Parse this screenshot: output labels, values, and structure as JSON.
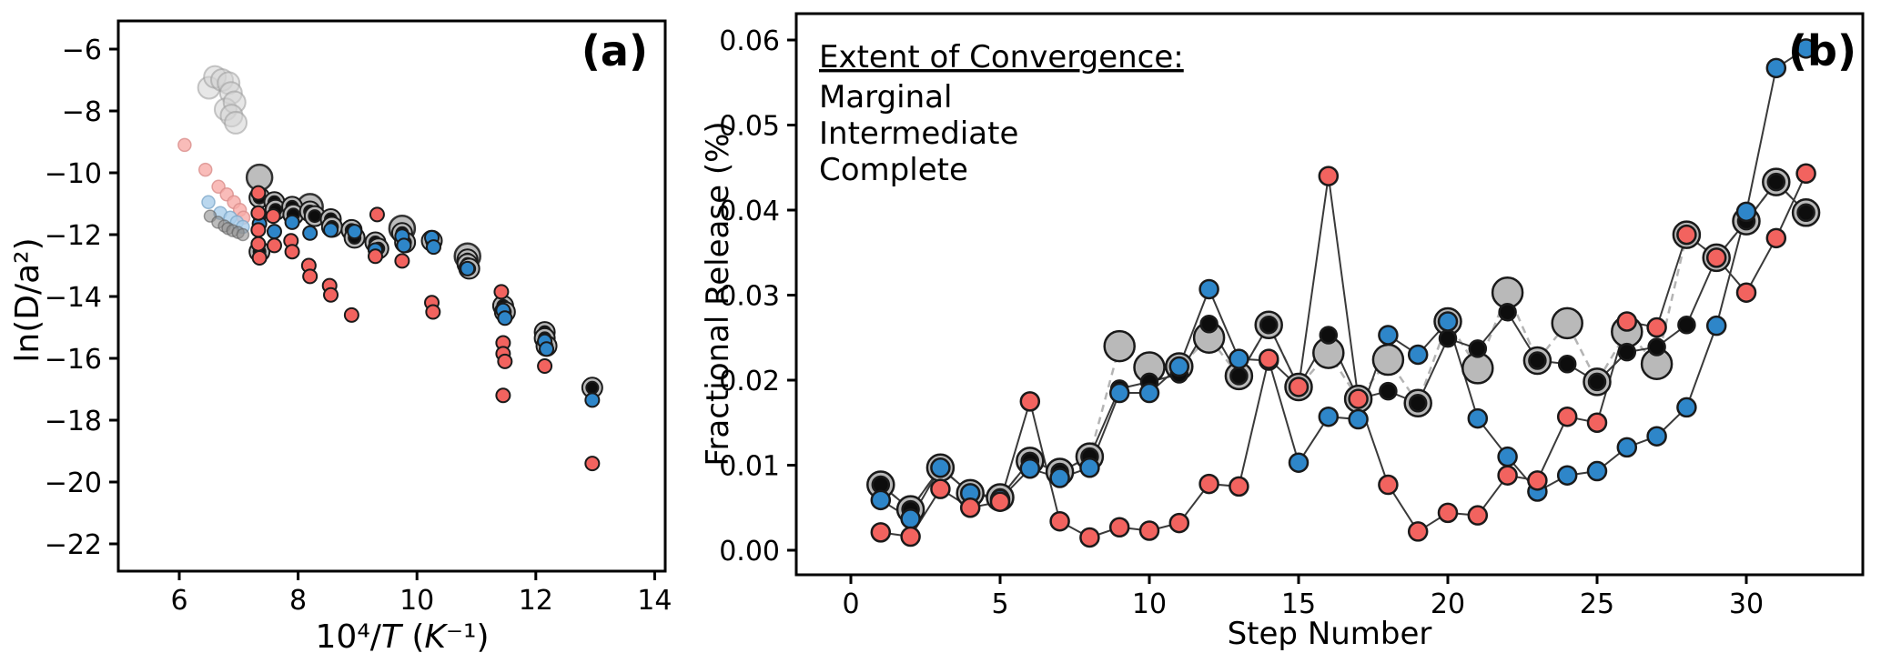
{
  "colors": {
    "marginal_red": "#f2635f",
    "intermediate_blue": "#2e86c9",
    "complete_black": "#0d0d0d",
    "halo_gray": "#b9b9b9",
    "big_gray": "#bdbdbd",
    "marker_edge": "#1a1a1a",
    "series_line": "#3a3a3a",
    "dashed_gray_line": "#b4b4b4",
    "faded_gray": "#d4d4d4",
    "faded_gray_edge": "#9a9a9a",
    "faded_red": "#f8aba7",
    "faded_red_edge": "#d98f8c",
    "faded_blue": "#a9cdea",
    "faded_blue_edge": "#7fa9c9",
    "faded_dark": "#8f8f8f",
    "faded_dark_edge": "#5f5f5f"
  },
  "chart_data": [
    {
      "type": "scatter",
      "panel_label": "(a)",
      "xlabel": "10⁴/T (K⁻¹)",
      "xlabel_parts": [
        {
          "text": "10",
          "italic": false
        },
        {
          "text": "⁴",
          "italic": false
        },
        {
          "text": "/",
          "italic": false
        },
        {
          "text": "T",
          "italic": true
        },
        {
          "text": " (",
          "italic": false
        },
        {
          "text": "K",
          "italic": true
        },
        {
          "text": "⁻¹",
          "italic": false
        },
        {
          "text": ")",
          "italic": false
        }
      ],
      "ylabel": "ln(D/a²)",
      "xlim": [
        5.0,
        14.25
      ],
      "ylim": [
        -23.0,
        -5.1
      ],
      "x_ticks": [
        6,
        8,
        10,
        12,
        14
      ],
      "y_ticks": [
        -6,
        -8,
        -10,
        -12,
        -14,
        -16,
        -18,
        -20,
        -22
      ],
      "grid": false,
      "series": [
        {
          "name": "faded-large-gray",
          "style": "faded_gray",
          "points": [
            [
              6.5,
              -7.25
            ],
            [
              6.6,
              -6.9
            ],
            [
              6.72,
              -7.0
            ],
            [
              6.83,
              -7.1
            ],
            [
              6.87,
              -7.42
            ],
            [
              6.78,
              -7.95
            ],
            [
              6.93,
              -7.72
            ],
            [
              6.88,
              -8.15
            ],
            [
              6.95,
              -8.38
            ]
          ]
        },
        {
          "name": "faded-marginal",
          "style": "faded_red",
          "points": [
            [
              6.09,
              -9.1
            ],
            [
              6.44,
              -9.9
            ],
            [
              6.66,
              -10.45
            ],
            [
              6.8,
              -10.7
            ],
            [
              6.92,
              -10.95
            ],
            [
              7.02,
              -11.2
            ],
            [
              7.08,
              -11.45
            ]
          ]
        },
        {
          "name": "faded-intermediate",
          "style": "faded_blue",
          "points": [
            [
              6.49,
              -10.95
            ],
            [
              6.69,
              -11.3
            ],
            [
              6.86,
              -11.45
            ],
            [
              6.97,
              -11.6
            ],
            [
              7.07,
              -11.75
            ]
          ]
        },
        {
          "name": "faded-complete",
          "style": "faded_dark",
          "points": [
            [
              6.52,
              -11.4
            ],
            [
              6.65,
              -11.6
            ],
            [
              6.76,
              -11.72
            ],
            [
              6.82,
              -11.8
            ],
            [
              6.9,
              -11.87
            ],
            [
              6.99,
              -11.93
            ],
            [
              7.07,
              -12.0
            ]
          ]
        },
        {
          "name": "large-gray-circles",
          "style": "big_gray",
          "points": [
            [
              7.35,
              -10.15
            ],
            [
              8.2,
              -11.1
            ],
            [
              9.75,
              -11.8
            ],
            [
              10.85,
              -12.7
            ]
          ]
        },
        {
          "name": "complete",
          "style": "complete",
          "points": [
            [
              7.35,
              -10.8
            ],
            [
              7.35,
              -12.55
            ],
            [
              7.6,
              -10.95
            ],
            [
              7.62,
              -11.2
            ],
            [
              7.9,
              -11.1
            ],
            [
              7.92,
              -11.35
            ],
            [
              8.2,
              -11.25
            ],
            [
              8.28,
              -11.4
            ],
            [
              8.55,
              -11.5
            ],
            [
              8.57,
              -11.75
            ],
            [
              8.9,
              -11.85
            ],
            [
              8.95,
              -12.1
            ],
            [
              9.3,
              -12.25
            ],
            [
              9.35,
              -12.45
            ],
            [
              9.75,
              -11.95
            ],
            [
              9.8,
              -12.25
            ],
            [
              10.25,
              -12.2
            ],
            [
              10.85,
              -12.8
            ],
            [
              10.85,
              -12.95
            ],
            [
              10.88,
              -13.1
            ],
            [
              11.45,
              -14.3
            ],
            [
              11.48,
              -14.5
            ],
            [
              12.15,
              -15.15
            ],
            [
              12.15,
              -15.35
            ],
            [
              12.18,
              -15.6
            ],
            [
              12.95,
              -16.95
            ]
          ]
        },
        {
          "name": "intermediate",
          "style": "blue",
          "points": [
            [
              7.35,
              -11.35
            ],
            [
              7.35,
              -11.65
            ],
            [
              7.6,
              -11.9
            ],
            [
              7.9,
              -11.6
            ],
            [
              8.2,
              -11.95
            ],
            [
              8.55,
              -11.85
            ],
            [
              8.95,
              -11.9
            ],
            [
              9.3,
              -12.5
            ],
            [
              9.75,
              -12.05
            ],
            [
              9.78,
              -12.35
            ],
            [
              10.25,
              -12.1
            ],
            [
              10.28,
              -12.4
            ],
            [
              10.85,
              -13.1
            ],
            [
              11.45,
              -14.45
            ],
            [
              11.48,
              -14.7
            ],
            [
              12.15,
              -15.45
            ],
            [
              12.18,
              -15.7
            ],
            [
              12.95,
              -17.35
            ]
          ]
        },
        {
          "name": "marginal",
          "style": "red",
          "points": [
            [
              7.33,
              -10.65
            ],
            [
              7.33,
              -11.3
            ],
            [
              7.33,
              -11.85
            ],
            [
              7.33,
              -12.3
            ],
            [
              7.35,
              -12.75
            ],
            [
              7.58,
              -11.4
            ],
            [
              7.6,
              -12.35
            ],
            [
              7.88,
              -12.2
            ],
            [
              7.9,
              -12.55
            ],
            [
              8.18,
              -13.0
            ],
            [
              8.2,
              -13.35
            ],
            [
              8.53,
              -13.65
            ],
            [
              8.55,
              -13.95
            ],
            [
              8.9,
              -14.6
            ],
            [
              9.33,
              -11.35
            ],
            [
              9.3,
              -12.7
            ],
            [
              9.75,
              -12.85
            ],
            [
              10.25,
              -14.2
            ],
            [
              10.27,
              -14.5
            ],
            [
              11.42,
              -13.85
            ],
            [
              11.45,
              -15.5
            ],
            [
              11.45,
              -15.85
            ],
            [
              11.48,
              -16.1
            ],
            [
              11.45,
              -17.2
            ],
            [
              12.15,
              -16.25
            ],
            [
              12.95,
              -19.4
            ]
          ]
        }
      ]
    },
    {
      "type": "line-scatter",
      "panel_label": "(b)",
      "xlabel": "Step Number",
      "ylabel": "Fractional Release (%)",
      "xlim": [
        0,
        33.6
      ],
      "ylim": [
        0.0,
        0.063
      ],
      "x_ticks": [
        0,
        5,
        10,
        15,
        20,
        25,
        30
      ],
      "y_ticks": [
        0.0,
        0.01,
        0.02,
        0.03,
        0.04,
        0.05,
        0.06
      ],
      "grid": false,
      "legend": {
        "title": "Extent of Convergence:",
        "items": [
          {
            "label": "Marginal",
            "color": "#f2635f"
          },
          {
            "label": "Intermediate",
            "color": "#2e86c9"
          },
          {
            "label": "Complete",
            "color": "#0d0d0d"
          }
        ]
      },
      "steps": [
        1,
        2,
        3,
        4,
        5,
        6,
        7,
        8,
        9,
        10,
        11,
        12,
        13,
        14,
        15,
        16,
        17,
        18,
        19,
        20,
        21,
        22,
        23,
        24,
        25,
        26,
        27,
        28,
        29,
        30,
        31,
        32
      ],
      "series": [
        {
          "name": "gray-halo",
          "values": [
            0.0077,
            0.0048,
            0.0097,
            0.0067,
            0.0062,
            0.0105,
            0.0092,
            0.011,
            0.024,
            0.0215,
            0.0216,
            0.025,
            0.0205,
            0.0265,
            0.0192,
            0.0232,
            0.0178,
            0.0224,
            0.0173,
            0.0269,
            0.0214,
            0.0303,
            0.0223,
            0.0267,
            0.0198,
            0.0257,
            0.0219,
            0.0371,
            0.0344,
            0.0387,
            0.0433,
            0.0397
          ],
          "big_steps": [
            9,
            10,
            12,
            16,
            18,
            21,
            22,
            24,
            26,
            27
          ]
        },
        {
          "name": "complete",
          "values": [
            0.0077,
            0.0048,
            0.0097,
            0.0067,
            0.0062,
            0.0105,
            0.0092,
            0.011,
            0.019,
            0.0198,
            0.0207,
            0.0266,
            0.0205,
            0.0265,
            0.0192,
            0.0253,
            0.0178,
            0.0187,
            0.0173,
            0.0249,
            0.0237,
            0.028,
            0.0223,
            0.0219,
            0.0198,
            0.0233,
            0.0239,
            0.0265,
            0.0344,
            0.0387,
            0.0433,
            0.0397
          ]
        },
        {
          "name": "intermediate",
          "values": [
            0.0059,
            0.0037,
            0.0097,
            0.0067,
            0.006,
            0.0096,
            0.0085,
            0.0097,
            0.0185,
            0.0185,
            0.0216,
            0.0307,
            0.0225,
            0.0223,
            0.0103,
            0.0157,
            0.0154,
            0.0253,
            0.023,
            0.0269,
            0.0155,
            0.011,
            0.0069,
            0.0088,
            0.0093,
            0.0121,
            0.0134,
            0.0168,
            0.0264,
            0.0398,
            0.0567,
            0.059
          ]
        },
        {
          "name": "marginal",
          "values": [
            0.0021,
            0.0016,
            0.0072,
            0.005,
            0.0057,
            0.0175,
            0.0034,
            0.0015,
            0.0027,
            0.0023,
            0.0032,
            0.0078,
            0.0075,
            0.0225,
            0.0192,
            0.044,
            0.0178,
            0.0077,
            0.0022,
            0.0044,
            0.0041,
            0.0088,
            0.0082,
            0.0157,
            0.015,
            0.0269,
            0.0262,
            0.0371,
            0.0344,
            0.0303,
            0.0367,
            0.0443
          ]
        }
      ]
    }
  ]
}
